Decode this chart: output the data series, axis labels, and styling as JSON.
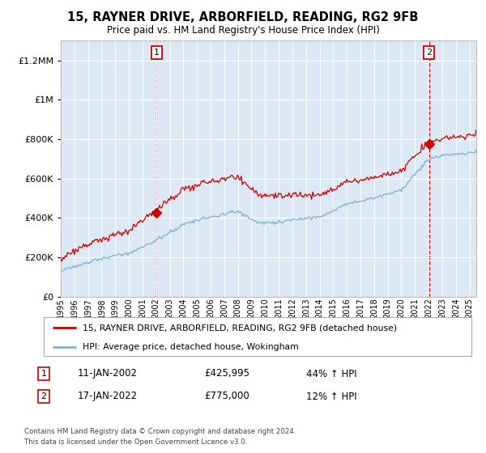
{
  "title": "15, RAYNER DRIVE, ARBORFIELD, READING, RG2 9FB",
  "subtitle": "Price paid vs. HM Land Registry's House Price Index (HPI)",
  "red_label": "15, RAYNER DRIVE, ARBORFIELD, READING, RG2 9FB (detached house)",
  "blue_label": "HPI: Average price, detached house, Wokingham",
  "sale1_date": "11-JAN-2002",
  "sale1_price": 425995,
  "sale1_label": "1",
  "sale1_x": 2002.04,
  "sale1_text": "44% ↑ HPI",
  "sale2_date": "17-JAN-2022",
  "sale2_price": 775000,
  "sale2_label": "2",
  "sale2_x": 2022.04,
  "sale2_text": "12% ↑ HPI",
  "footnote1": "Contains HM Land Registry data © Crown copyright and database right 2024.",
  "footnote2": "This data is licensed under the Open Government Licence v3.0.",
  "background_color": "#dce9f5",
  "red_color": "#cc0000",
  "blue_color": "#7aafd4",
  "ylim_max": 1300000,
  "xlim_start": 1995.0,
  "xlim_end": 2025.5
}
